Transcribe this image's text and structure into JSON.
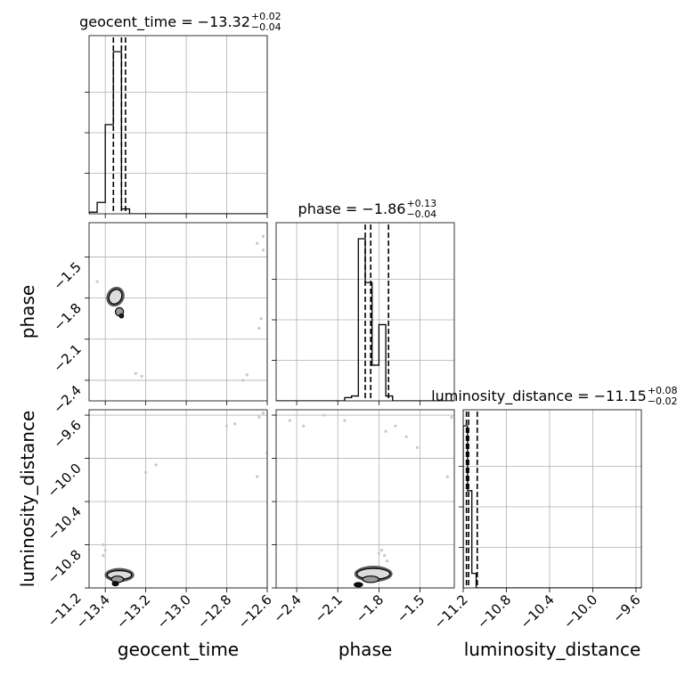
{
  "chart_data": {
    "type": "corner",
    "parameters": [
      "geocent_time",
      "phase",
      "luminosity_distance"
    ],
    "titles": [
      {
        "param": "geocent_time",
        "prefix": "geocent_time = ",
        "median": "−13.32",
        "plus": "+0.02",
        "minus": "−0.04"
      },
      {
        "param": "phase",
        "prefix": "phase = ",
        "median": "−1.86",
        "plus": "+0.13",
        "minus": "−0.04"
      },
      {
        "param": "luminosity_distance",
        "prefix": "luminosity_distance = ",
        "median": "−11.15",
        "plus": "+0.08",
        "minus": "−0.02"
      }
    ],
    "axes": {
      "geocent_time": {
        "range": [
          -13.48,
          -12.6
        ],
        "ticks": [
          -13.4,
          -13.2,
          -13.0,
          -12.8,
          -12.6
        ],
        "tick_labels": [
          "−13.4",
          "−13.2",
          "−13.0",
          "−12.8",
          "−12.6"
        ]
      },
      "phase": {
        "range": [
          -2.55,
          -1.25
        ],
        "ticks": [
          -2.4,
          -2.1,
          -1.8,
          -1.5
        ],
        "tick_labels": [
          "−2.4",
          "−2.1",
          "−1.8",
          "−1.5"
        ]
      },
      "luminosity_distance": {
        "range": [
          -11.2,
          -9.55
        ],
        "ticks": [
          -11.2,
          -10.8,
          -10.4,
          -10.0,
          -9.6
        ],
        "tick_labels": [
          "−11.2",
          "−10.8",
          "−10.4",
          "−10.0",
          "−9.6"
        ]
      }
    },
    "histograms": {
      "geocent_time": {
        "edges": [
          -13.48,
          -13.44,
          -13.4,
          -13.36,
          -13.32,
          -13.28,
          -13.24
        ],
        "values": [
          0.01,
          0.07,
          0.55,
          1.0,
          0.03,
          0.0
        ],
        "quantiles": [
          -13.36,
          -13.32,
          -13.3
        ]
      },
      "phase": {
        "edges": [
          -2.05,
          -2.0,
          -1.95,
          -1.9,
          -1.85,
          -1.8,
          -1.75,
          -1.7,
          -1.65,
          -1.6
        ],
        "values": [
          0.02,
          0.03,
          1.0,
          0.73,
          0.22,
          0.47,
          0.03,
          0.0,
          0.0
        ],
        "quantiles": [
          -1.9,
          -1.86,
          -1.73
        ]
      },
      "luminosity_distance": {
        "edges": [
          -11.2,
          -11.16,
          -11.12,
          -11.08,
          -11.04,
          -11.0
        ],
        "values": [
          1.0,
          0.6,
          0.09,
          0.0,
          0.0
        ],
        "quantiles": [
          -11.17,
          -11.15,
          -11.07
        ]
      }
    },
    "density_2d": [
      {
        "x": "geocent_time",
        "y": "phase",
        "cores": [
          {
            "cx": -13.35,
            "cy": -1.79,
            "sx": 0.03,
            "sy": 0.055,
            "tilt": 0.5,
            "shade": "#dcdcdc"
          },
          {
            "cx": -13.33,
            "cy": -1.9,
            "sx": 0.02,
            "sy": 0.03,
            "tilt": 0.0,
            "shade": "#9a9a9a"
          },
          {
            "cx": -13.32,
            "cy": -1.93,
            "sx": 0.01,
            "sy": 0.015,
            "tilt": 0.0,
            "shade": "#222222"
          }
        ],
        "outliers": [
          [
            -13.25,
            -2.35
          ],
          [
            -13.22,
            -2.37
          ],
          [
            -12.72,
            -2.4
          ],
          [
            -12.7,
            -2.36
          ],
          [
            -12.65,
            -1.4
          ],
          [
            -12.62,
            -1.45
          ],
          [
            -12.63,
            -1.95
          ],
          [
            -12.64,
            -2.02
          ],
          [
            -12.62,
            -1.35
          ],
          [
            -13.44,
            -1.68
          ]
        ]
      },
      {
        "x": "geocent_time",
        "y": "luminosity_distance",
        "cores": [
          {
            "cx": -13.33,
            "cy": -11.08,
            "sx": 0.06,
            "sy": 0.04,
            "tilt": 0.0,
            "shade": "#dcdcdc"
          },
          {
            "cx": -13.34,
            "cy": -11.12,
            "sx": 0.03,
            "sy": 0.03,
            "tilt": 0.0,
            "shade": "#9a9a9a"
          },
          {
            "cx": -13.35,
            "cy": -11.16,
            "sx": 0.015,
            "sy": 0.02,
            "tilt": 0.0,
            "shade": "#111111"
          }
        ],
        "outliers": [
          [
            -13.41,
            -10.8
          ],
          [
            -13.4,
            -10.85
          ],
          [
            -13.41,
            -10.9
          ],
          [
            -13.2,
            -10.13
          ],
          [
            -13.15,
            -10.06
          ],
          [
            -12.8,
            -9.7
          ],
          [
            -12.76,
            -9.68
          ],
          [
            -12.64,
            -9.62
          ],
          [
            -12.62,
            -9.58
          ],
          [
            -12.65,
            -10.17
          ],
          [
            -12.6,
            -9.95
          ]
        ]
      },
      {
        "x": "phase",
        "y": "luminosity_distance",
        "cores": [
          {
            "cx": -1.84,
            "cy": -11.07,
            "sx": 0.12,
            "sy": 0.05,
            "tilt": 0.0,
            "shade": "#dcdcdc"
          },
          {
            "cx": -1.86,
            "cy": -11.12,
            "sx": 0.06,
            "sy": 0.03,
            "tilt": 0.0,
            "shade": "#9a9a9a"
          },
          {
            "cx": -1.95,
            "cy": -11.17,
            "sx": 0.03,
            "sy": 0.02,
            "tilt": 0.0,
            "shade": "#111111"
          }
        ],
        "outliers": [
          [
            -1.78,
            -10.85
          ],
          [
            -1.76,
            -10.9
          ],
          [
            -1.74,
            -10.95
          ],
          [
            -1.8,
            -10.88
          ],
          [
            -2.45,
            -9.65
          ],
          [
            -2.35,
            -9.7
          ],
          [
            -2.2,
            -9.6
          ],
          [
            -1.75,
            -9.75
          ],
          [
            -1.6,
            -9.8
          ],
          [
            -1.52,
            -9.9
          ],
          [
            -1.3,
            -10.17
          ],
          [
            -1.27,
            -9.62
          ],
          [
            -1.68,
            -9.7
          ],
          [
            -2.05,
            -9.65
          ]
        ]
      }
    ]
  }
}
